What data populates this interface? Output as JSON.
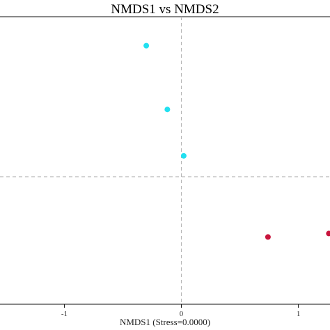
{
  "chart_data": {
    "type": "scatter",
    "title": "NMDS1 vs NMDS2",
    "xlabel": "NMDS1 (Stress=0.0000)",
    "ylabel": "",
    "xlim": [
      -1.55,
      1.27
    ],
    "ylim": [
      -1.1,
      1.38
    ],
    "xticks": [
      {
        "value": -1,
        "label": "-1"
      },
      {
        "value": 0,
        "label": "0"
      },
      {
        "value": 1,
        "label": "1"
      }
    ],
    "reference_lines": {
      "x": 0,
      "y": 0,
      "style": "dashed"
    },
    "grid": false,
    "points": [
      {
        "x": -0.3,
        "y": 1.13,
        "color": "#22e0f0"
      },
      {
        "x": -0.12,
        "y": 0.58,
        "color": "#22e0f0"
      },
      {
        "x": 0.02,
        "y": 0.18,
        "color": "#22e0f0"
      },
      {
        "x": 0.74,
        "y": -0.52,
        "color": "#c8143c"
      },
      {
        "x": 1.26,
        "y": -0.49,
        "color": "#c8143c"
      }
    ]
  }
}
